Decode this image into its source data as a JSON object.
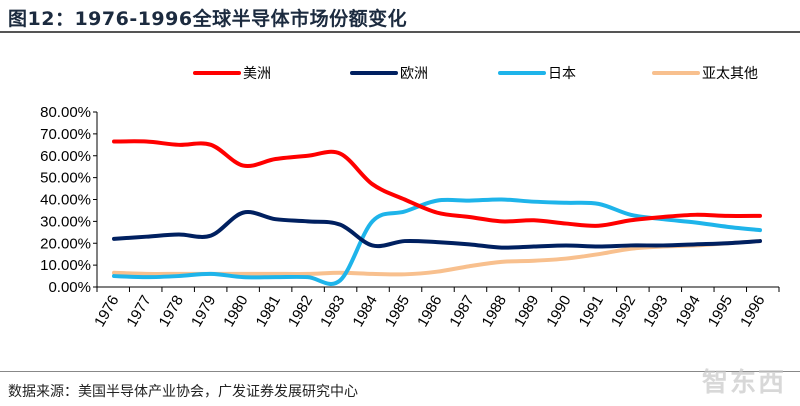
{
  "title": "图12：1976-1996全球半导体市场份额变化",
  "source": "数据来源：美国半导体产业协会，广发证券发展研究中心",
  "watermark": "智东西",
  "chart_data": {
    "type": "line",
    "title": "",
    "xlabel": "",
    "ylabel": "",
    "x": [
      "1976",
      "1977",
      "1978",
      "1979",
      "1980",
      "1981",
      "1982",
      "1983",
      "1984",
      "1985",
      "1986",
      "1987",
      "1988",
      "1989",
      "1990",
      "1991",
      "1992",
      "1993",
      "1994",
      "1995",
      "1996"
    ],
    "ylim": [
      0,
      80
    ],
    "yticks": [
      "0.00%",
      "10.00%",
      "20.00%",
      "30.00%",
      "40.00%",
      "50.00%",
      "60.00%",
      "70.00%",
      "80.00%"
    ],
    "grid": false,
    "legend": "top",
    "series": [
      {
        "name": "美洲",
        "color": "#ff0000",
        "values": [
          66.5,
          66.5,
          65,
          65,
          55.5,
          58.5,
          60,
          61,
          47,
          40,
          34,
          32,
          30,
          30.5,
          29,
          28,
          30.5,
          32,
          33,
          32.5,
          32.5
        ]
      },
      {
        "name": "欧洲",
        "color": "#002060",
        "values": [
          22,
          23,
          24,
          23.5,
          34,
          31,
          30,
          28.5,
          19,
          21,
          20.5,
          19.5,
          18,
          18.5,
          19,
          18.5,
          19,
          19,
          19.5,
          20,
          21
        ]
      },
      {
        "name": "日本",
        "color": "#1eb4ea",
        "values": [
          5,
          4.5,
          5,
          6,
          4.5,
          4.5,
          4.5,
          3,
          30,
          34.5,
          39.5,
          39.5,
          40,
          39,
          38.5,
          38,
          33,
          31,
          29.5,
          27.5,
          26
        ]
      },
      {
        "name": "亚太其他",
        "color": "#f8c08e",
        "values": [
          6.5,
          6,
          6,
          6,
          6,
          6,
          6,
          6.5,
          6,
          5.8,
          7,
          9.5,
          11.5,
          12,
          13,
          15,
          17.5,
          18.5,
          19,
          20,
          21
        ]
      }
    ]
  }
}
